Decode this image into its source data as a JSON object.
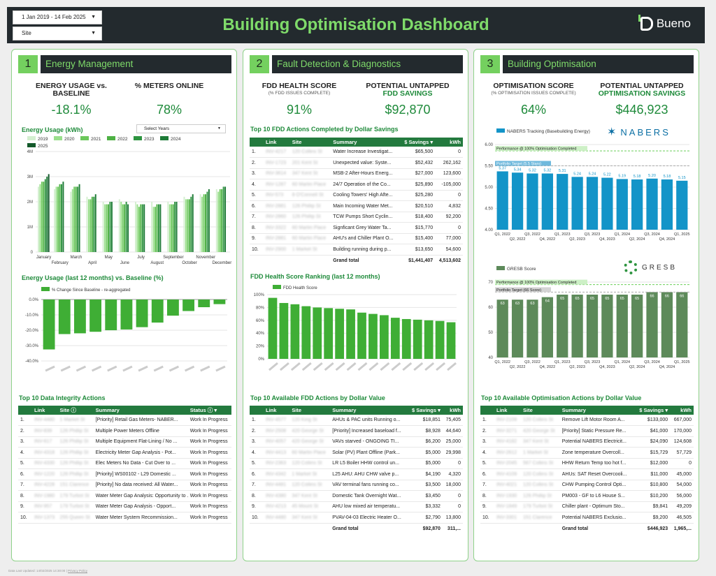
{
  "header": {
    "date_range": "1 Jan 2019 - 14 Feb 2025",
    "site_filter": "Site",
    "title": "Building Optimisation Dashboard",
    "logo": "Bueno"
  },
  "energy": {
    "number": "1",
    "title": "Energy Management",
    "kpi1_label": "ENERGY USAGE vs. BASELINE",
    "kpi1_value": "-18.1%",
    "kpi2_label": "% METERS ONLINE",
    "kpi2_value": "78%",
    "usage_title": "Energy Usage (kWh)",
    "select_years": "Select Years",
    "baseline_title": "Energy Usage (last 12 months) vs. Baseline (%)",
    "baseline_legend": "% Change Since Baseline - re-aggregated",
    "integrity_title": "Top 10 Data Integrity Actions",
    "integrity_cols": [
      "Link",
      "Site",
      "Summary",
      "Status"
    ],
    "integrity_rows": [
      [
        "1.",
        "INV-4480",
        "1 Market St",
        "[Priority] Retail Gas Meters- NABER...",
        "Work In Progress"
      ],
      [
        "2.",
        "INV-839",
        "126 Phillip St",
        "Multiple Power Meters Offline",
        "Work In Progress"
      ],
      [
        "3.",
        "INV-617",
        "126 Phillip St",
        "Multiple Equipment Flat-Lining / No ...",
        "Work In Progress"
      ],
      [
        "4.",
        "INV-4318",
        "126 Phillip St",
        "Electricity Meter Gap Analysis - Pot...",
        "Work In Progress"
      ],
      [
        "5.",
        "INV-4330",
        "126 Phillip St",
        "Elec Meters No Data - Cut Over to ...",
        "Work In Progress"
      ],
      [
        "6.",
        "INV-1220",
        "126 Phillip St",
        "[Priority] WS00102 - L29 Domestic ...",
        "Work In Progress"
      ],
      [
        "7.",
        "INV-4228",
        "151 Clarence",
        "[Priority] No data received: All Water...",
        "Work In Progress"
      ],
      [
        "8.",
        "INV-1980",
        "179 Turbot St",
        "Water Meter Gap Analysis: Opportunity to ...",
        "Work In Progress"
      ],
      [
        "9.",
        "INV-957",
        "179 Turbot St",
        "Water Meter Gap Analysis - Opport...",
        "Work In Progress"
      ],
      [
        "10.",
        "INV-1373",
        "255 Queen St",
        "Water Meter System Recommission...",
        "Work In Progress"
      ]
    ]
  },
  "fdd": {
    "number": "2",
    "title": "Fault Detection & Diagnostics",
    "kpi1_label": "FDD HEALTH SCORE",
    "kpi1_sub": "(% FDD ISSUES COMPLETE)",
    "kpi1_value": "91%",
    "kpi2_label_a": "POTENTIAL UNTAPPED",
    "kpi2_label_b": "FDD SAVINGS",
    "kpi2_value": "$92,870",
    "completed_title": "Top 10 FDD Actions Completed by Dollar Savings",
    "completed_cols": [
      "Link",
      "Site",
      "Summary",
      "$ Savings",
      "kWh"
    ],
    "completed_rows": [
      [
        "1.",
        "INV-4217",
        "120 Collins St",
        "Water Increase Investigat...",
        "$65,500",
        "0"
      ],
      [
        "2.",
        "INV-1723",
        "201 Kent St",
        "Unexpected value: Syste...",
        "$52,432",
        "262,162"
      ],
      [
        "3.",
        "INV-3614",
        "347 Kent St",
        "MSB-2 After-Hours Energ...",
        "$27,000",
        "123,600"
      ],
      [
        "4.",
        "INV-1287",
        "60 Martin Place",
        "24/7 Operation of the Co...",
        "$25,890",
        "-105,000"
      ],
      [
        "5.",
        "INV-573",
        "8 O'Connell St",
        "Cooling Towers' High Afte...",
        "$25,280",
        "0"
      ],
      [
        "6.",
        "INV-2881",
        "126 Phillip St",
        "Main Incoming Water Met...",
        "$20,510",
        "4,832"
      ],
      [
        "7.",
        "INV-2860",
        "126 Phillip St",
        "TCW Pumps Short Cyclin...",
        "$18,400",
        "92,200"
      ],
      [
        "8.",
        "INV-3322",
        "60 Martin Place",
        "Signficant Grey Water Ta...",
        "$15,770",
        "0"
      ],
      [
        "9.",
        "INV-2881",
        "60 Martin Place",
        "AHU's and Chiller Plant O...",
        "$15,400",
        "77,000"
      ],
      [
        "10.",
        "INV-2900",
        "1 Market St",
        "Building running during p...",
        "$13,650",
        "54,600"
      ]
    ],
    "completed_total": [
      "Grand total",
      "$1,441,407",
      "4,513,602"
    ],
    "ranking_title": "FDD Health Score Ranking (last 12 months)",
    "ranking_legend": "FDD Health Score",
    "available_title": "Top 10 Available FDD Actions by Dollar Value",
    "available_cols": [
      "Link",
      "Site",
      "Summary",
      "$ Savings",
      "kWh"
    ],
    "available_rows": [
      [
        "1.",
        "INV-4577",
        "120 King St",
        "AHUs & PAC units Running o...",
        "$18,851",
        "75,405"
      ],
      [
        "2.",
        "INV-2508",
        "420 George St",
        "[Priority] Increased baseload f...",
        "$8,928",
        "44,640"
      ],
      [
        "3.",
        "INV-4057",
        "420 George St",
        "VAVs starved - ONGOING TI...",
        "$6,200",
        "25,000"
      ],
      [
        "4.",
        "INV-4413",
        "60 Martin Place",
        "Solar (PV) Plant Offline (Park...",
        "$5,000",
        "29,998"
      ],
      [
        "5.",
        "INV-2363",
        "120 Collins St",
        "LR L5 Boiler HHW control un...",
        "$5,000",
        "0"
      ],
      [
        "6.",
        "INV-4342",
        "1 Market St",
        "L25 AHU: AHU CHW valve p...",
        "$4,190",
        "4,320"
      ],
      [
        "7.",
        "INV-4481",
        "120 Collins St",
        "VAV terminal fans running co...",
        "$3,500",
        "18,000"
      ],
      [
        "8.",
        "INV-4380",
        "347 Kent St",
        "Domestic Tank Overnight Wat...",
        "$3,450",
        "0"
      ],
      [
        "9.",
        "INV-4213",
        "45 Mount St",
        "AHU low mixed air temperatu...",
        "$3,332",
        "0"
      ],
      [
        "10.",
        "INV-4480",
        "347 Kent St",
        "PVAV-04-03 Electric Heater O...",
        "$2,790",
        "13,800"
      ]
    ],
    "available_total": [
      "Grand total",
      "$92,870",
      "311,..."
    ]
  },
  "opt": {
    "number": "3",
    "title": "Building Optimisation",
    "kpi1_label": "OPTIMISATION SCORE",
    "kpi1_sub": "(% OPTIMISATION ISSUES COMPLETE)",
    "kpi1_value": "64%",
    "kpi2_label_a": "POTENTIAL UNTAPPED",
    "kpi2_label_b": "OPTIMISATION SAVINGS",
    "kpi2_value": "$446,923",
    "nabers_legend": "NABERS Tracking (Basebuilding Energy)",
    "nabers_logo": "NABERS",
    "nabers_perf": "Performance @ 100% Optimisation Completed",
    "nabers_target": "Portfolio Target (5.5 Stars)",
    "gresb_legend": "GRESB Score",
    "gresb_logo": "GRESB",
    "gresb_perf": "Performance @ 100% Optimisation Completed",
    "gresb_target": "Portfolio Target (66 Score)",
    "available_title": "Top 10 Available Optimisation Actions by Dollar Value",
    "available_cols": [
      "Link",
      "Site",
      "Summary",
      "$ Savings",
      "kWh"
    ],
    "available_rows": [
      [
        "1.",
        "INV-2109",
        "120 Collins St",
        "Remove Lift Motor Room A...",
        "$133,000",
        "667,000"
      ],
      [
        "2.",
        "INV-3271",
        "420 George St",
        "[Priority] Static Pressure Re...",
        "$41,000",
        "170,000"
      ],
      [
        "3.",
        "INV-4182",
        "347 Kent St",
        "Potential NABERS Electricit...",
        "$24,090",
        "124,608"
      ],
      [
        "4.",
        "INV-2612",
        "1 Market St",
        "Zone temperature Overcoll...",
        "$15,729",
        "57,729"
      ],
      [
        "5.",
        "INV-2045",
        "567 Collins St",
        "HHW Return Temp too hot f...",
        "$12,000",
        "0"
      ],
      [
        "6.",
        "INV-4109",
        "120 Collins St",
        "AHUs: SAT Reset Overcooli...",
        "$11,000",
        "45,000"
      ],
      [
        "7.",
        "INV-4021",
        "120 Collins St",
        "CHW Pumping Control Opti...",
        "$10,800",
        "54,000"
      ],
      [
        "8.",
        "INV-1930",
        "126 Phillip St",
        "PM003 - GF to L6 House S...",
        "$10,200",
        "56,000"
      ],
      [
        "9.",
        "INV-1849",
        "179 Turbot St",
        "Chiller plant - Optimum Sto...",
        "$9,841",
        "49,209"
      ],
      [
        "10.",
        "INV-3301",
        "151 Clarence",
        "Potential NABERS Exclusio...",
        "$9,200",
        "46,505"
      ]
    ],
    "available_total": [
      "Grand total",
      "$446,923",
      "1,965,..."
    ]
  },
  "footer": {
    "updated": "Data Last Updated: 14/02/2025 14:30:00",
    "privacy": "Privacy Policy"
  },
  "chart_data": [
    {
      "type": "bar",
      "title": "Energy Usage (kWh)",
      "categories": [
        "January",
        "February",
        "March",
        "April",
        "May",
        "June",
        "July",
        "August",
        "September",
        "October",
        "November",
        "December"
      ],
      "series": [
        {
          "name": "2019",
          "values": [
            2.6,
            2.5,
            2.4,
            2.2,
            2.0,
            2.1,
            2.0,
            2.0,
            2.0,
            2.2,
            2.3,
            2.5
          ]
        },
        {
          "name": "2020",
          "values": [
            2.7,
            2.6,
            2.5,
            2.1,
            1.9,
            2.0,
            1.9,
            1.8,
            1.9,
            2.1,
            2.2,
            2.4
          ]
        },
        {
          "name": "2021",
          "values": [
            2.8,
            2.6,
            2.6,
            2.1,
            1.9,
            1.9,
            1.8,
            1.8,
            1.9,
            2.1,
            2.3,
            2.5
          ]
        },
        {
          "name": "2022",
          "values": [
            2.8,
            2.7,
            2.6,
            2.2,
            1.9,
            1.9,
            1.9,
            1.9,
            1.9,
            2.1,
            2.3,
            2.5
          ]
        },
        {
          "name": "2023",
          "values": [
            2.9,
            2.7,
            2.6,
            2.2,
            2.0,
            2.0,
            1.9,
            1.9,
            2.0,
            2.2,
            2.4,
            2.6
          ]
        },
        {
          "name": "2024",
          "values": [
            3.0,
            2.8,
            2.7,
            2.3,
            2.0,
            1.9,
            1.9,
            1.9,
            2.0,
            2.3,
            2.5,
            2.6
          ]
        },
        {
          "name": "2025",
          "values": [
            3.1,
            null,
            null,
            null,
            null,
            null,
            null,
            null,
            null,
            null,
            null,
            null
          ]
        }
      ],
      "y_ticks": [
        "0",
        "1M",
        "2M",
        "3M",
        "4M"
      ],
      "ylim": [
        0,
        4
      ],
      "colors": [
        "#d4efd0",
        "#9adf8c",
        "#6cc85c",
        "#4eb144",
        "#2e9440",
        "#1d7a36",
        "#13592a"
      ]
    },
    {
      "type": "bar",
      "title": "Energy Usage (last 12 months) vs. Baseline (%)",
      "values": [
        -32.5,
        -22.5,
        -22,
        -21,
        -20,
        -19.5,
        -18,
        -15,
        -10.5,
        -7.5,
        -5,
        -3
      ],
      "y_ticks": [
        "0.0%",
        "-10.0%",
        "-20.0%",
        "-30.0%",
        "-40.0%"
      ],
      "ylim": [
        -40,
        0
      ]
    },
    {
      "type": "bar",
      "title": "FDD Health Score Ranking (last 12 months)",
      "values": [
        95,
        87,
        85,
        82,
        80,
        79,
        78,
        77,
        72,
        70,
        68,
        64,
        62,
        61,
        60,
        59,
        57
      ],
      "y_ticks": [
        "0%",
        "20%",
        "40%",
        "60%",
        "80%",
        "100%"
      ],
      "ylim": [
        0,
        100
      ]
    },
    {
      "type": "bar",
      "title": "NABERS Tracking (Basebuilding Energy)",
      "categories": [
        "Q1, 2022",
        "Q2, 2022",
        "Q3, 2022",
        "Q4, 2022",
        "Q1, 2023",
        "Q2, 2023",
        "Q3, 2023",
        "Q4, 2023",
        "Q1, 2024",
        "Q2, 2024",
        "Q3, 2024",
        "Q4, 2024",
        "Q1, 2025"
      ],
      "values": [
        5.37,
        5.34,
        5.32,
        5.32,
        5.31,
        5.24,
        5.24,
        5.22,
        5.19,
        5.18,
        5.2,
        5.18,
        5.15
      ],
      "y_ticks": [
        "4.00",
        "4.50",
        "5.00",
        "5.50",
        "6.00"
      ],
      "ylim": [
        4,
        6
      ],
      "perf_line": 5.85,
      "target_line": 5.5
    },
    {
      "type": "bar",
      "title": "GRESB Score",
      "categories": [
        "Q1, 2022",
        "Q2, 2022",
        "Q3, 2022",
        "Q4, 2022",
        "Q1, 2023",
        "Q2, 2023",
        "Q3, 2023",
        "Q4, 2023",
        "Q1, 2024",
        "Q2, 2024",
        "Q3, 2024",
        "Q4, 2024",
        "Q1, 2025"
      ],
      "values": [
        63,
        63,
        63,
        64,
        65,
        65,
        65,
        65,
        65,
        65,
        66,
        66,
        66
      ],
      "y_ticks": [
        "40",
        "50",
        "60",
        "70"
      ],
      "ylim": [
        40,
        70
      ],
      "perf_line": 69,
      "target_line": 66
    }
  ]
}
